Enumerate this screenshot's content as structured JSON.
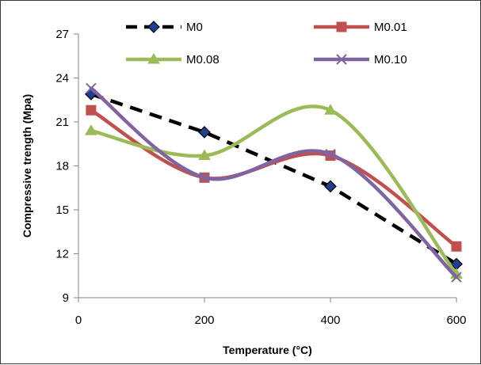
{
  "chart_data": {
    "type": "line",
    "xlabel": "Temperature (°C)",
    "ylabel": "Compressive trength (Mpa)",
    "xlim": [
      0,
      600
    ],
    "ylim": [
      9,
      27
    ],
    "xticks": [
      "0",
      "200",
      "400",
      "600"
    ],
    "yticks": [
      "9",
      "12",
      "15",
      "18",
      "21",
      "24",
      "27"
    ],
    "grid": false,
    "legend": "top",
    "x": [
      20,
      200,
      400,
      600
    ],
    "series": [
      {
        "name": "M0",
        "values": [
          22.9,
          20.3,
          16.6,
          11.3
        ],
        "color": "#000000",
        "marker": "diamond",
        "style": "dashed",
        "marker_fill": "#1f3f8f"
      },
      {
        "name": "M0.01",
        "values": [
          21.8,
          17.2,
          18.7,
          12.5
        ],
        "color": "#c0504d",
        "marker": "square",
        "style": "smooth",
        "marker_fill": "#c0504d"
      },
      {
        "name": "M0.08",
        "values": [
          20.4,
          18.7,
          21.8,
          10.6
        ],
        "color": "#9bbb59",
        "marker": "triangle",
        "style": "smooth",
        "marker_fill": "#9bbb59"
      },
      {
        "name": "M0.10",
        "values": [
          23.3,
          17.2,
          18.8,
          10.4
        ],
        "color": "#8064a2",
        "marker": "x",
        "style": "smooth",
        "marker_fill": "#8064a2"
      }
    ]
  }
}
